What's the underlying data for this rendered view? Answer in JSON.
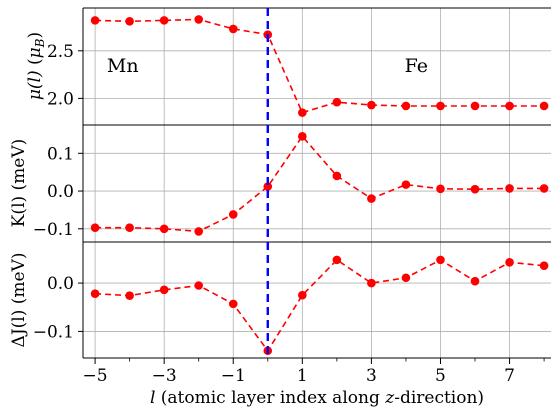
{
  "chart_data": [
    {
      "type": "line",
      "panel": "top",
      "ylabel": "μ(l) (μ_B)",
      "ylabel_parts": {
        "sym": "μ(l)",
        "unit_open": " (",
        "unit_sym": "μ",
        "unit_sub": "B",
        "unit_close": ")"
      },
      "x": [
        -5,
        -4,
        -3,
        -2,
        -1,
        0,
        1,
        2,
        3,
        4,
        5,
        6,
        7,
        8
      ],
      "values": [
        2.82,
        2.81,
        2.82,
        2.83,
        2.73,
        2.67,
        1.85,
        1.96,
        1.93,
        1.92,
        1.92,
        1.92,
        1.92,
        1.92
      ],
      "ylim": [
        1.72,
        2.95
      ],
      "yticks": [
        2.0,
        2.5
      ],
      "ytick_labels": [
        "2.0",
        "2.5"
      ],
      "annotations": [
        {
          "text": "Mn",
          "x": -4.2,
          "y": 2.35
        },
        {
          "text": "Fe",
          "x": 4.3,
          "y": 2.35
        }
      ],
      "grid": true,
      "marker": "circle",
      "line_style": "dashed",
      "color": "#ff0000"
    },
    {
      "type": "line",
      "panel": "middle",
      "ylabel": "K(l) (meV)",
      "x": [
        -5,
        -4,
        -3,
        -2,
        -1,
        0,
        1,
        2,
        3,
        4,
        5,
        6,
        7,
        8
      ],
      "values": [
        -0.097,
        -0.097,
        -0.1,
        -0.107,
        -0.062,
        0.012,
        0.145,
        0.04,
        -0.02,
        0.017,
        0.006,
        0.005,
        0.007,
        0.007
      ],
      "ylim": [
        -0.135,
        0.175
      ],
      "yticks": [
        -0.1,
        0.0,
        0.1
      ],
      "ytick_labels": [
        "−0.1",
        "0.0",
        "0.1"
      ],
      "grid": true,
      "marker": "circle",
      "line_style": "dashed",
      "color": "#ff0000"
    },
    {
      "type": "line",
      "panel": "bottom",
      "ylabel": "ΔJ(l) (meV)",
      "x": [
        -5,
        -4,
        -3,
        -2,
        -1,
        0,
        1,
        2,
        3,
        4,
        5,
        6,
        7,
        8
      ],
      "values": [
        -0.022,
        -0.026,
        -0.014,
        -0.005,
        -0.043,
        -0.14,
        -0.025,
        0.048,
        0.0,
        0.011,
        0.048,
        0.004,
        0.043,
        0.036
      ],
      "ylim": [
        -0.155,
        0.085
      ],
      "yticks": [
        -0.1,
        0.0
      ],
      "ytick_labels": [
        "−0.1",
        "0.0"
      ],
      "grid": true,
      "marker": "circle",
      "line_style": "dashed",
      "color": "#ff0000"
    }
  ],
  "shared_x": {
    "xlabel": "l (atomic layer index along z-direction)",
    "xlabel_parts": {
      "var": "l",
      "pre": " (atomic layer index along ",
      "var2": "z",
      "post": "-direction)"
    },
    "xlim": [
      -5.35,
      8.2
    ],
    "xticks": [
      -5,
      -3,
      -1,
      1,
      3,
      5,
      7
    ],
    "xtick_labels": [
      "−5",
      "−3",
      "−1",
      "1",
      "3",
      "5",
      "7"
    ],
    "minor_xticks": [
      -4,
      -2,
      0,
      2,
      4,
      6,
      8
    ]
  },
  "interface_line": {
    "x": 0,
    "color": "#0000ff",
    "style": "dashed"
  }
}
